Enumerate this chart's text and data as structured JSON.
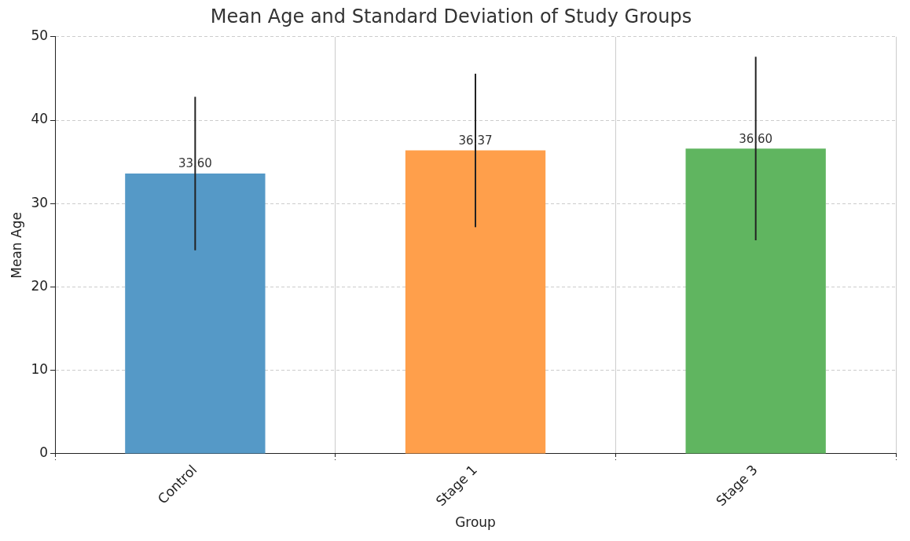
{
  "chart_data": {
    "type": "bar",
    "title": "Mean Age and Standard Deviation of Study Groups",
    "xlabel": "Group",
    "ylabel": "Mean Age",
    "categories": [
      "Control",
      "Stage 1",
      "Stage 3"
    ],
    "values": [
      33.6,
      36.37,
      36.6
    ],
    "colors": [
      "#5599c7",
      "#ff9f4b",
      "#60b560"
    ],
    "errors": [
      9.2,
      9.2,
      11.0
    ],
    "value_labels": [
      "33.60",
      "36.37",
      "36.60"
    ],
    "ylim": [
      0,
      50
    ],
    "yticks": [
      0,
      10,
      20,
      30,
      40,
      50
    ],
    "grid": true,
    "legend": false
  }
}
